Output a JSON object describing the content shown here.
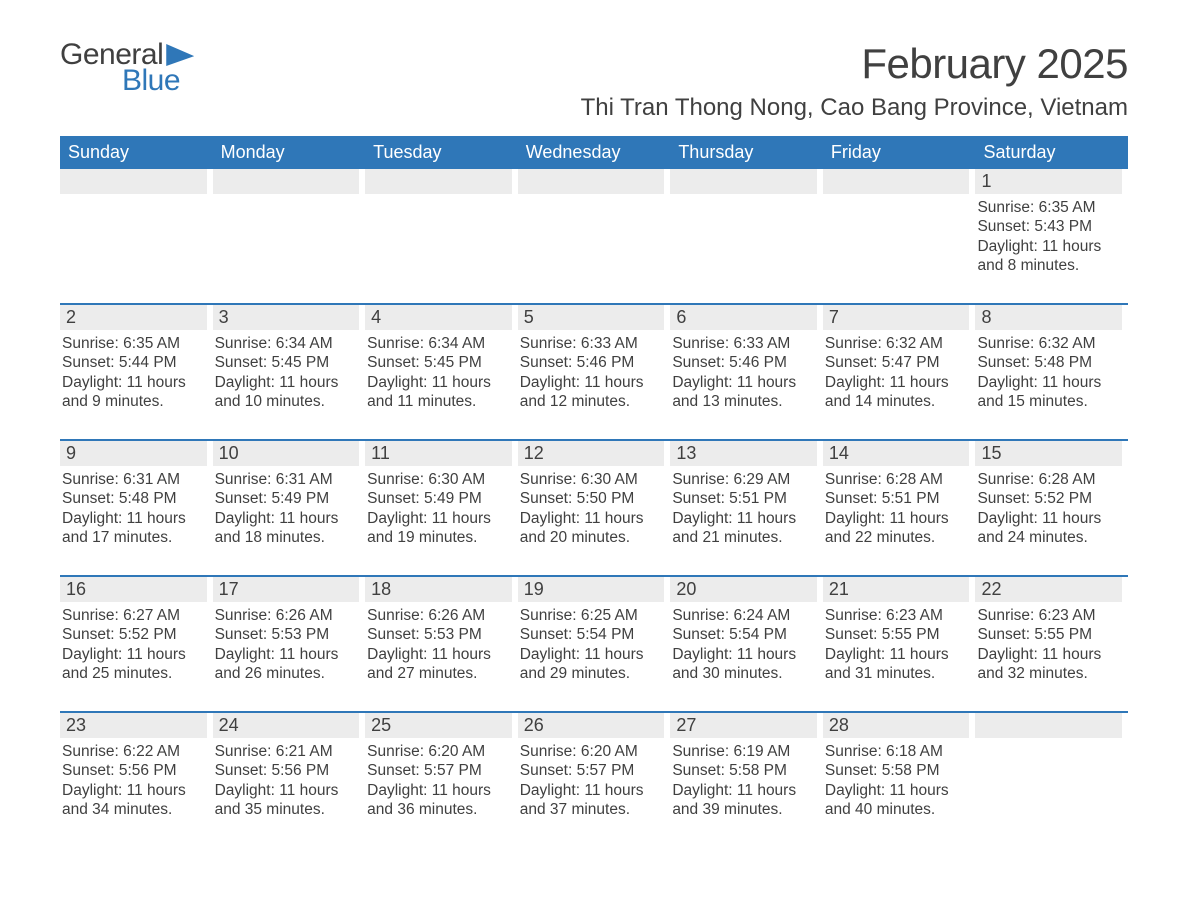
{
  "brand": {
    "general": "General",
    "blue": "Blue"
  },
  "title": "February 2025",
  "location": "Thi Tran Thong Nong, Cao Bang Province, Vietnam",
  "colors": {
    "header_bg": "#2f77b8",
    "header_text": "#ffffff",
    "daynum_bg": "#ececec",
    "text": "#404040",
    "rule": "#2f77b8",
    "page_bg": "#ffffff"
  },
  "weekdays": [
    "Sunday",
    "Monday",
    "Tuesday",
    "Wednesday",
    "Thursday",
    "Friday",
    "Saturday"
  ],
  "weeks": [
    [
      {
        "n": "",
        "sunrise": "",
        "sunset": "",
        "daylight": ""
      },
      {
        "n": "",
        "sunrise": "",
        "sunset": "",
        "daylight": ""
      },
      {
        "n": "",
        "sunrise": "",
        "sunset": "",
        "daylight": ""
      },
      {
        "n": "",
        "sunrise": "",
        "sunset": "",
        "daylight": ""
      },
      {
        "n": "",
        "sunrise": "",
        "sunset": "",
        "daylight": ""
      },
      {
        "n": "",
        "sunrise": "",
        "sunset": "",
        "daylight": ""
      },
      {
        "n": "1",
        "sunrise": "Sunrise: 6:35 AM",
        "sunset": "Sunset: 5:43 PM",
        "daylight": "Daylight: 11 hours and 8 minutes."
      }
    ],
    [
      {
        "n": "2",
        "sunrise": "Sunrise: 6:35 AM",
        "sunset": "Sunset: 5:44 PM",
        "daylight": "Daylight: 11 hours and 9 minutes."
      },
      {
        "n": "3",
        "sunrise": "Sunrise: 6:34 AM",
        "sunset": "Sunset: 5:45 PM",
        "daylight": "Daylight: 11 hours and 10 minutes."
      },
      {
        "n": "4",
        "sunrise": "Sunrise: 6:34 AM",
        "sunset": "Sunset: 5:45 PM",
        "daylight": "Daylight: 11 hours and 11 minutes."
      },
      {
        "n": "5",
        "sunrise": "Sunrise: 6:33 AM",
        "sunset": "Sunset: 5:46 PM",
        "daylight": "Daylight: 11 hours and 12 minutes."
      },
      {
        "n": "6",
        "sunrise": "Sunrise: 6:33 AM",
        "sunset": "Sunset: 5:46 PM",
        "daylight": "Daylight: 11 hours and 13 minutes."
      },
      {
        "n": "7",
        "sunrise": "Sunrise: 6:32 AM",
        "sunset": "Sunset: 5:47 PM",
        "daylight": "Daylight: 11 hours and 14 minutes."
      },
      {
        "n": "8",
        "sunrise": "Sunrise: 6:32 AM",
        "sunset": "Sunset: 5:48 PM",
        "daylight": "Daylight: 11 hours and 15 minutes."
      }
    ],
    [
      {
        "n": "9",
        "sunrise": "Sunrise: 6:31 AM",
        "sunset": "Sunset: 5:48 PM",
        "daylight": "Daylight: 11 hours and 17 minutes."
      },
      {
        "n": "10",
        "sunrise": "Sunrise: 6:31 AM",
        "sunset": "Sunset: 5:49 PM",
        "daylight": "Daylight: 11 hours and 18 minutes."
      },
      {
        "n": "11",
        "sunrise": "Sunrise: 6:30 AM",
        "sunset": "Sunset: 5:49 PM",
        "daylight": "Daylight: 11 hours and 19 minutes."
      },
      {
        "n": "12",
        "sunrise": "Sunrise: 6:30 AM",
        "sunset": "Sunset: 5:50 PM",
        "daylight": "Daylight: 11 hours and 20 minutes."
      },
      {
        "n": "13",
        "sunrise": "Sunrise: 6:29 AM",
        "sunset": "Sunset: 5:51 PM",
        "daylight": "Daylight: 11 hours and 21 minutes."
      },
      {
        "n": "14",
        "sunrise": "Sunrise: 6:28 AM",
        "sunset": "Sunset: 5:51 PM",
        "daylight": "Daylight: 11 hours and 22 minutes."
      },
      {
        "n": "15",
        "sunrise": "Sunrise: 6:28 AM",
        "sunset": "Sunset: 5:52 PM",
        "daylight": "Daylight: 11 hours and 24 minutes."
      }
    ],
    [
      {
        "n": "16",
        "sunrise": "Sunrise: 6:27 AM",
        "sunset": "Sunset: 5:52 PM",
        "daylight": "Daylight: 11 hours and 25 minutes."
      },
      {
        "n": "17",
        "sunrise": "Sunrise: 6:26 AM",
        "sunset": "Sunset: 5:53 PM",
        "daylight": "Daylight: 11 hours and 26 minutes."
      },
      {
        "n": "18",
        "sunrise": "Sunrise: 6:26 AM",
        "sunset": "Sunset: 5:53 PM",
        "daylight": "Daylight: 11 hours and 27 minutes."
      },
      {
        "n": "19",
        "sunrise": "Sunrise: 6:25 AM",
        "sunset": "Sunset: 5:54 PM",
        "daylight": "Daylight: 11 hours and 29 minutes."
      },
      {
        "n": "20",
        "sunrise": "Sunrise: 6:24 AM",
        "sunset": "Sunset: 5:54 PM",
        "daylight": "Daylight: 11 hours and 30 minutes."
      },
      {
        "n": "21",
        "sunrise": "Sunrise: 6:23 AM",
        "sunset": "Sunset: 5:55 PM",
        "daylight": "Daylight: 11 hours and 31 minutes."
      },
      {
        "n": "22",
        "sunrise": "Sunrise: 6:23 AM",
        "sunset": "Sunset: 5:55 PM",
        "daylight": "Daylight: 11 hours and 32 minutes."
      }
    ],
    [
      {
        "n": "23",
        "sunrise": "Sunrise: 6:22 AM",
        "sunset": "Sunset: 5:56 PM",
        "daylight": "Daylight: 11 hours and 34 minutes."
      },
      {
        "n": "24",
        "sunrise": "Sunrise: 6:21 AM",
        "sunset": "Sunset: 5:56 PM",
        "daylight": "Daylight: 11 hours and 35 minutes."
      },
      {
        "n": "25",
        "sunrise": "Sunrise: 6:20 AM",
        "sunset": "Sunset: 5:57 PM",
        "daylight": "Daylight: 11 hours and 36 minutes."
      },
      {
        "n": "26",
        "sunrise": "Sunrise: 6:20 AM",
        "sunset": "Sunset: 5:57 PM",
        "daylight": "Daylight: 11 hours and 37 minutes."
      },
      {
        "n": "27",
        "sunrise": "Sunrise: 6:19 AM",
        "sunset": "Sunset: 5:58 PM",
        "daylight": "Daylight: 11 hours and 39 minutes."
      },
      {
        "n": "28",
        "sunrise": "Sunrise: 6:18 AM",
        "sunset": "Sunset: 5:58 PM",
        "daylight": "Daylight: 11 hours and 40 minutes."
      },
      {
        "n": "",
        "sunrise": "",
        "sunset": "",
        "daylight": ""
      }
    ]
  ]
}
